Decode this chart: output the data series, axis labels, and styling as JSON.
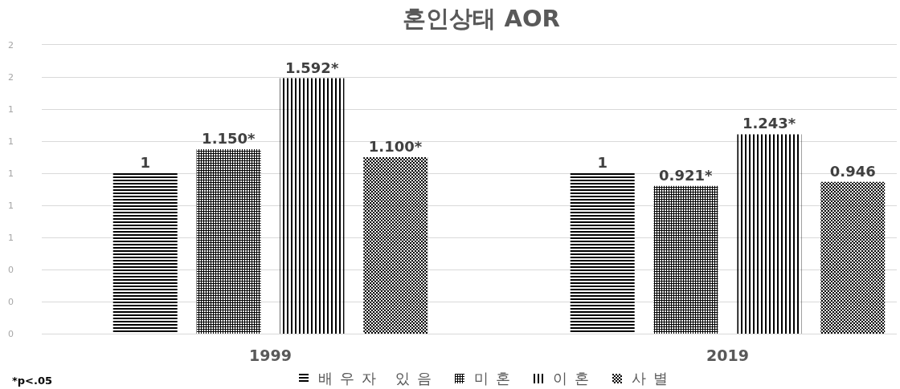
{
  "chart_data": {
    "type": "bar",
    "title": "혼인상태 AOR",
    "categories": [
      "1999",
      "2019"
    ],
    "series": [
      {
        "name": "배우자 있음",
        "color": "#000000",
        "values": [
          1,
          1
        ],
        "value_labels": [
          "1",
          "1"
        ]
      },
      {
        "name": "미혼",
        "color": "#000000",
        "values": [
          1.15,
          0.921
        ],
        "value_labels": [
          "1.150*",
          "0.921*"
        ]
      },
      {
        "name": "이혼",
        "color": "#000000",
        "values": [
          1.592,
          1.243
        ],
        "value_labels": [
          "1.592*",
          "1.243*"
        ]
      },
      {
        "name": "사별",
        "color": "#000000",
        "values": [
          1.1,
          0.946
        ],
        "value_labels": [
          "1.100*",
          "0.946"
        ]
      }
    ],
    "ylim": [
      0,
      1.8
    ],
    "yticks": [
      0,
      {
        "value": 0.2,
        "label": "0"
      },
      {
        "value": 0.4,
        "label": "0"
      },
      {
        "value": 0.6,
        "label": "1"
      },
      {
        "value": 0.8,
        "label": "1"
      },
      1,
      {
        "value": 1.2,
        "label": "1"
      },
      {
        "value": 1.4,
        "label": "1"
      },
      {
        "value": 1.6,
        "label": "2"
      },
      {
        "value": 1.8,
        "label": "2"
      }
    ],
    "grid": "y",
    "legend": "bottom",
    "annotations": [
      "*p<.05"
    ]
  }
}
